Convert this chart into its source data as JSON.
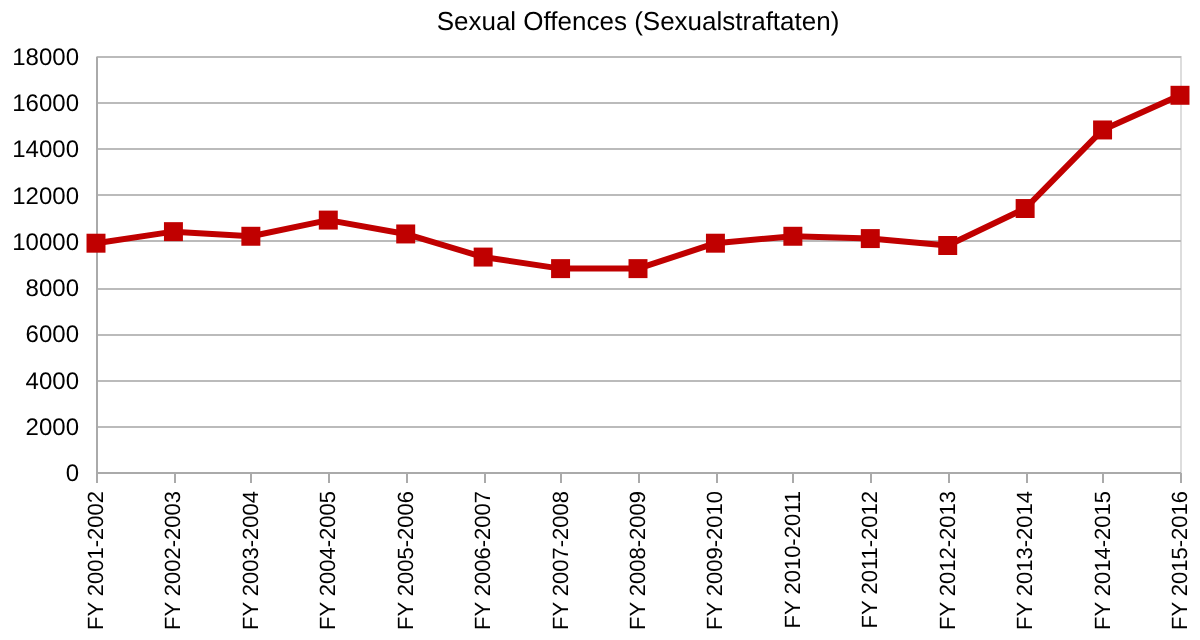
{
  "chart_data": {
    "type": "line",
    "title": "Sexual Offences (Sexualstraftaten)",
    "categories": [
      "FY 2001-2002",
      "FY 2002-2003",
      "FY 2003-2004",
      "FY 2004-2005",
      "FY 2005-2006",
      "FY 2006-2007",
      "FY 2007-2008",
      "FY 2008-2009",
      "FY 2009-2010",
      "FY 2010-2011",
      "FY 2011-2012",
      "FY 2012-2013",
      "FY 2013-2014",
      "FY 2014-2015",
      "FY 2015-2016"
    ],
    "series": [
      {
        "color": "#c00000",
        "values": [
          9900,
          10400,
          10200,
          10900,
          10300,
          9300,
          8800,
          8800,
          9900,
          10200,
          10100,
          9800,
          11400,
          14800,
          16300
        ]
      }
    ],
    "ylim": [
      0,
      18000
    ],
    "yticks": [
      0,
      2000,
      4000,
      6000,
      8000,
      10000,
      12000,
      14000,
      16000,
      18000
    ],
    "grid": "y",
    "marker": "square",
    "line_style": "solid"
  }
}
